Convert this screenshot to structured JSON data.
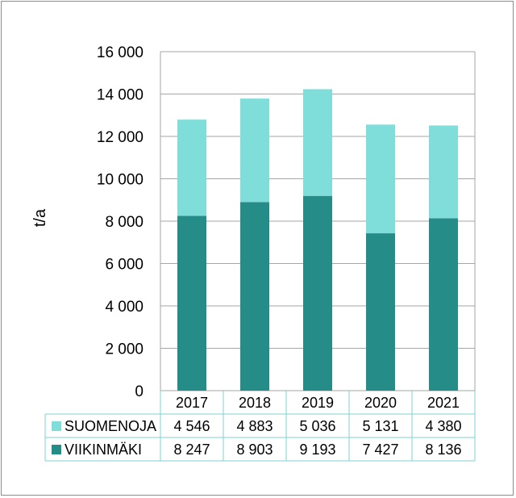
{
  "chart_data": {
    "type": "bar",
    "stacked": true,
    "categories": [
      "2017",
      "2018",
      "2019",
      "2020",
      "2021"
    ],
    "ylabel": "t/a",
    "xlabel": "",
    "ylim": [
      0,
      16000
    ],
    "yticks": [
      "0",
      "2 000",
      "4 000",
      "6 000",
      "8 000",
      "10 000",
      "12 000",
      "14 000",
      "16 000"
    ],
    "grid": true,
    "legend": "data-table",
    "series": [
      {
        "name": "VIIKINMÄKI",
        "values": [
          8247,
          8903,
          9193,
          7427,
          8136
        ],
        "labels": [
          "8 247",
          "8 903",
          "9 193",
          "7 427",
          "8 136"
        ],
        "color": "#268c87"
      },
      {
        "name": "SUOMENOJA",
        "values": [
          4546,
          4883,
          5036,
          5131,
          4380
        ],
        "labels": [
          "4 546",
          "4 883",
          "5 036",
          "5 131",
          "4 380"
        ],
        "color": "#80deda"
      }
    ]
  }
}
